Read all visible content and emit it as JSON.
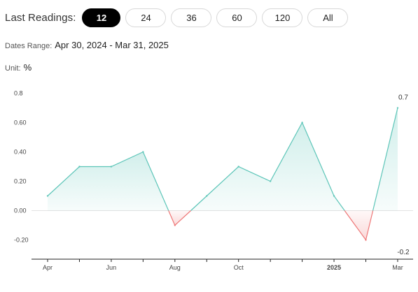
{
  "readings": {
    "label": "Last Readings:",
    "options": [
      "12",
      "24",
      "36",
      "60",
      "120",
      "All"
    ],
    "selected": "12"
  },
  "dates_range": {
    "label": "Dates Range:",
    "value": "Apr 30, 2024 - Mar 31, 2025"
  },
  "unit": {
    "label": "Unit:",
    "value": "%"
  },
  "colors": {
    "positive_line": "#5cc5b8",
    "negative_line": "#ee7777",
    "selected_pill": "#000000"
  },
  "chart_data": {
    "type": "area",
    "x": [
      "Apr 2024",
      "May 2024",
      "Jun 2024",
      "Jul 2024",
      "Aug 2024",
      "Sep 2024",
      "Oct 2024",
      "Nov 2024",
      "Dec 2024",
      "Jan 2025",
      "Feb 2025",
      "Mar 2025"
    ],
    "values": [
      0.1,
      0.3,
      0.3,
      0.4,
      -0.1,
      0.1,
      0.3,
      0.2,
      0.6,
      0.1,
      -0.2,
      0.7
    ],
    "ylim": [
      -0.3,
      0.8
    ],
    "yticks": [
      0.8,
      0.6,
      0.4,
      0.2,
      0.0,
      -0.2
    ],
    "ytick_labels": [
      "0.8",
      "0.60",
      "0.40",
      "0.20",
      "0.00",
      "-0.20"
    ],
    "xtick_labels": [
      {
        "index": 0,
        "label": "Apr",
        "bold": false
      },
      {
        "index": 2,
        "label": "Jun",
        "bold": false
      },
      {
        "index": 4,
        "label": "Aug",
        "bold": false
      },
      {
        "index": 6,
        "label": "Oct",
        "bold": false
      },
      {
        "index": 9,
        "label": "2025",
        "bold": true
      },
      {
        "index": 11,
        "label": "Mar",
        "bold": false
      }
    ],
    "end_labels": [
      {
        "index": 11,
        "label": "0.7",
        "position": "above"
      },
      {
        "index": 11,
        "label": "-0.2",
        "position": "below-axis"
      }
    ]
  }
}
